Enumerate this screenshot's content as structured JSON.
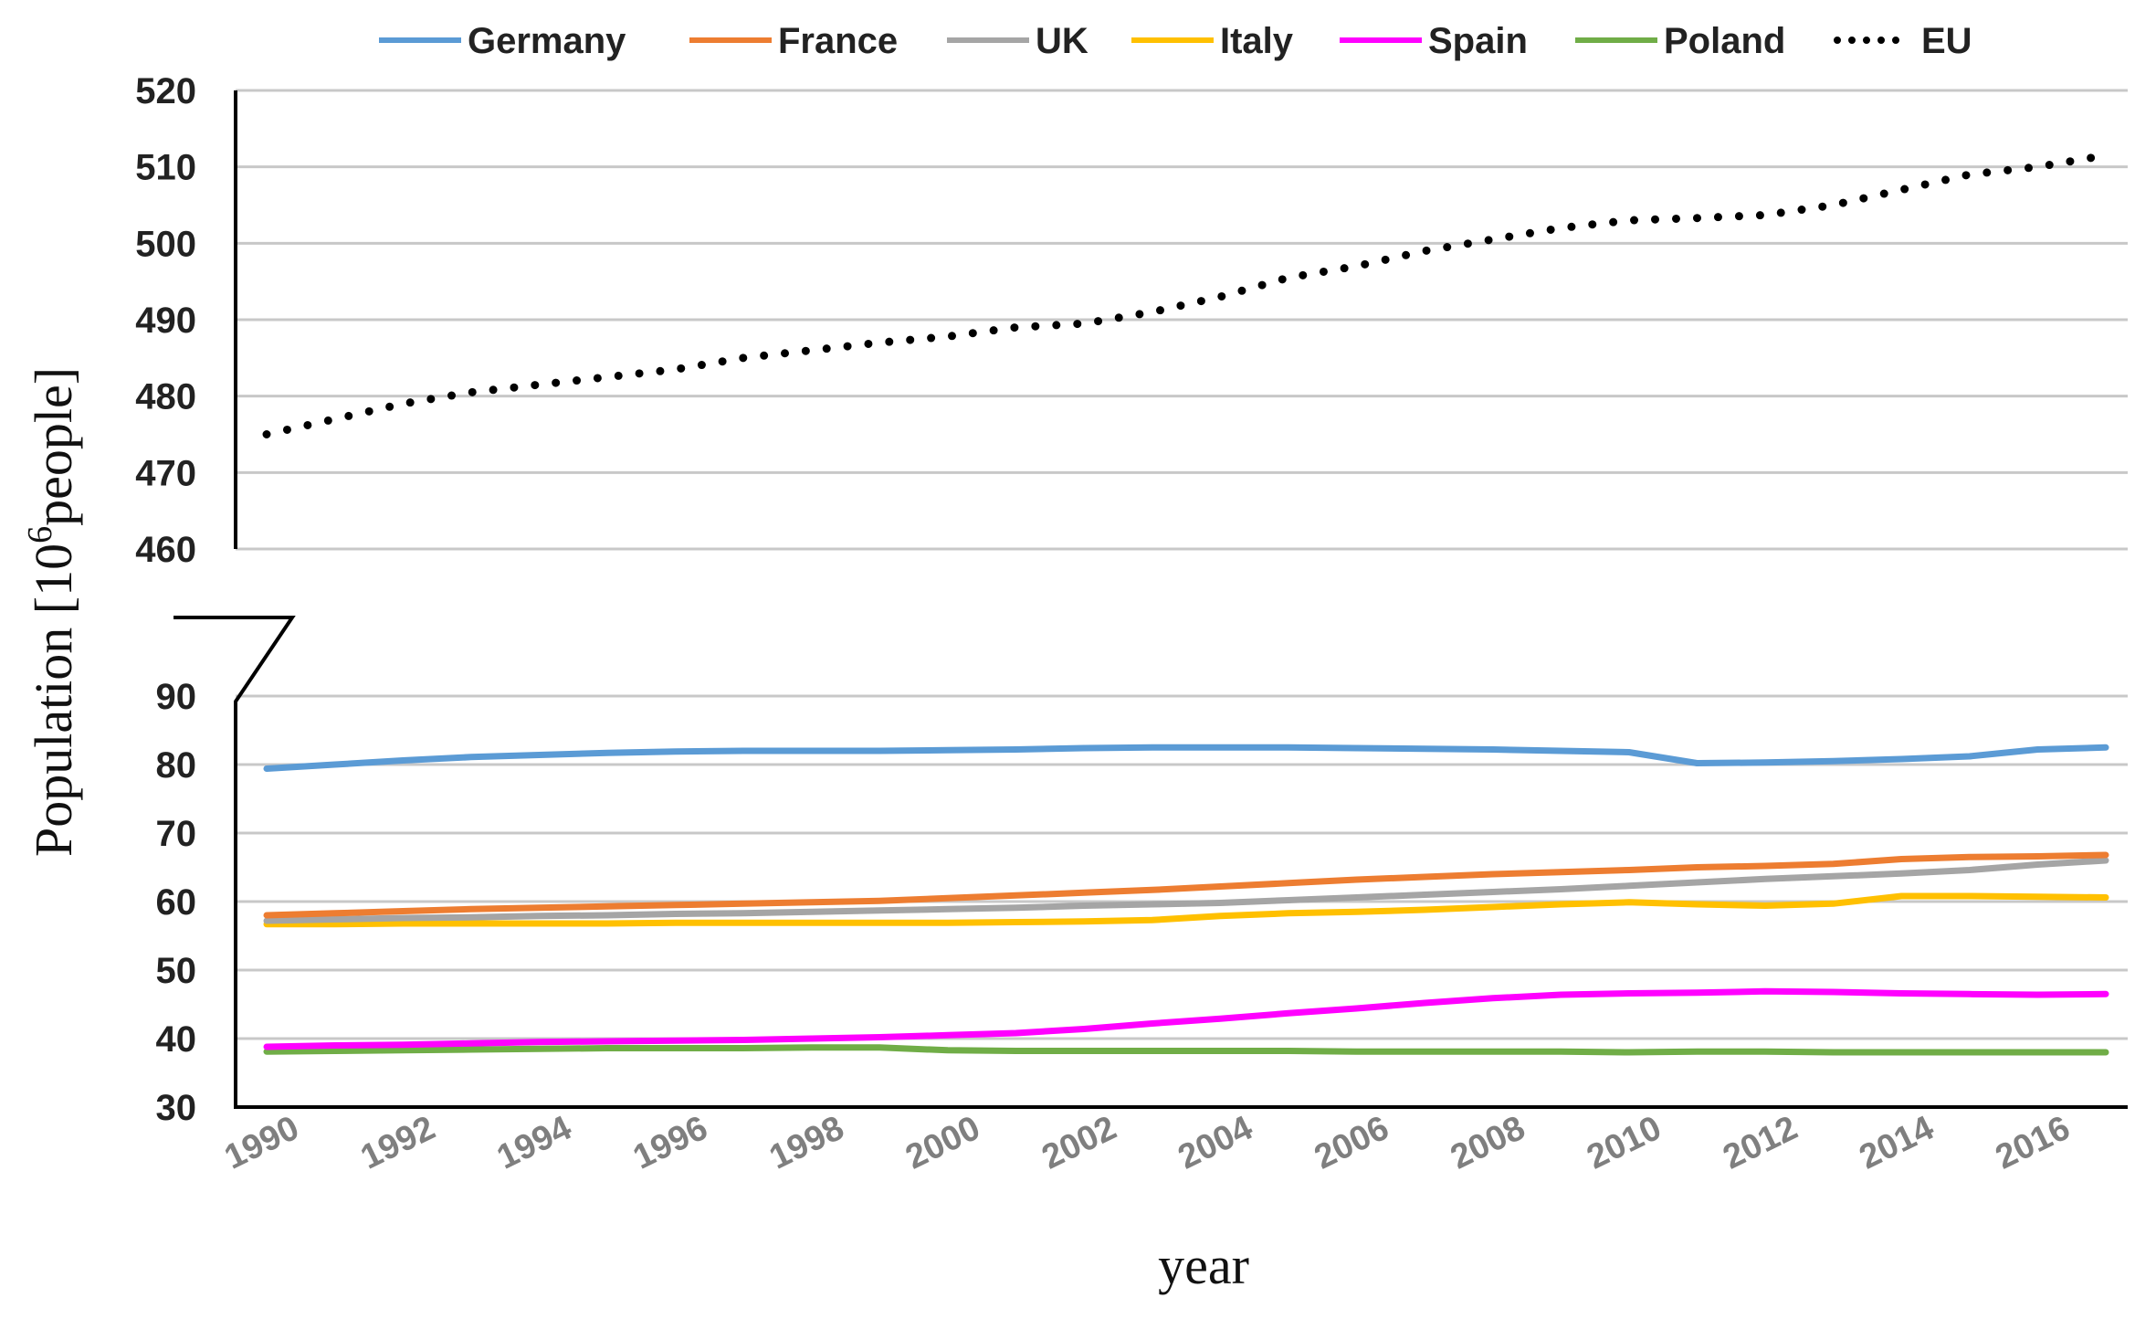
{
  "chart_data": {
    "type": "line",
    "title": "",
    "xlabel": "year",
    "ylabel": "Population [10^6 people]",
    "ylabel_parts": {
      "before": "Population [10",
      "superscript": "6",
      "after": "people]"
    },
    "x": [
      1990,
      1991,
      1992,
      1993,
      1994,
      1995,
      1996,
      1997,
      1998,
      1999,
      2000,
      2001,
      2002,
      2003,
      2004,
      2005,
      2006,
      2007,
      2008,
      2009,
      2010,
      2011,
      2012,
      2013,
      2014,
      2015,
      2016,
      2017
    ],
    "x_tick_labels": [
      "1990",
      "1992",
      "1994",
      "1996",
      "1998",
      "2000",
      "2002",
      "2004",
      "2006",
      "2008",
      "2010",
      "2012",
      "2014",
      "2016"
    ],
    "y_axis_broken": true,
    "y_upper_range": [
      460,
      520
    ],
    "y_upper_ticks": [
      "460",
      "470",
      "480",
      "490",
      "500",
      "510",
      "520"
    ],
    "y_lower_range": [
      30,
      90
    ],
    "y_lower_ticks": [
      "30",
      "40",
      "50",
      "60",
      "70",
      "80",
      "90"
    ],
    "grid": true,
    "legend_position": "top",
    "series": [
      {
        "name": "Germany",
        "color": "#5b9bd5",
        "style": "solid",
        "values": [
          79.4,
          80.0,
          80.6,
          81.1,
          81.4,
          81.7,
          81.9,
          82.0,
          82.0,
          82.0,
          82.1,
          82.2,
          82.4,
          82.5,
          82.5,
          82.5,
          82.4,
          82.3,
          82.2,
          82.0,
          81.8,
          80.2,
          80.3,
          80.5,
          80.8,
          81.2,
          82.2,
          82.5
        ]
      },
      {
        "name": "France",
        "color": "#ed7d31",
        "style": "solid",
        "values": [
          58.0,
          58.3,
          58.6,
          58.9,
          59.1,
          59.3,
          59.5,
          59.7,
          59.9,
          60.1,
          60.5,
          60.9,
          61.3,
          61.7,
          62.2,
          62.7,
          63.2,
          63.6,
          64.0,
          64.3,
          64.6,
          65.0,
          65.2,
          65.5,
          66.2,
          66.5,
          66.6,
          66.8
        ]
      },
      {
        "name": "UK",
        "color": "#a5a5a5",
        "style": "solid",
        "values": [
          57.2,
          57.4,
          57.6,
          57.7,
          57.9,
          58.0,
          58.2,
          58.3,
          58.5,
          58.7,
          58.9,
          59.1,
          59.4,
          59.6,
          59.8,
          60.2,
          60.6,
          61.0,
          61.4,
          61.8,
          62.3,
          62.8,
          63.3,
          63.7,
          64.1,
          64.6,
          65.4,
          66.0
        ]
      },
      {
        "name": "Italy",
        "color": "#ffc000",
        "style": "solid",
        "values": [
          56.7,
          56.7,
          56.8,
          56.8,
          56.8,
          56.8,
          56.9,
          56.9,
          56.9,
          56.9,
          56.9,
          57.0,
          57.1,
          57.3,
          57.9,
          58.3,
          58.5,
          58.8,
          59.2,
          59.6,
          59.9,
          59.6,
          59.4,
          59.7,
          60.8,
          60.8,
          60.7,
          60.6
        ]
      },
      {
        "name": "Spain",
        "color": "#ff00ff",
        "style": "solid",
        "values": [
          38.8,
          39.0,
          39.1,
          39.3,
          39.5,
          39.6,
          39.7,
          39.8,
          40.0,
          40.2,
          40.5,
          40.8,
          41.4,
          42.2,
          42.9,
          43.7,
          44.4,
          45.2,
          45.9,
          46.4,
          46.6,
          46.7,
          46.9,
          46.8,
          46.6,
          46.5,
          46.4,
          46.5
        ]
      },
      {
        "name": "Poland",
        "color": "#70ad47",
        "style": "solid",
        "values": [
          38.1,
          38.2,
          38.3,
          38.4,
          38.5,
          38.6,
          38.6,
          38.6,
          38.7,
          38.7,
          38.3,
          38.2,
          38.2,
          38.2,
          38.2,
          38.2,
          38.1,
          38.1,
          38.1,
          38.1,
          38.0,
          38.1,
          38.1,
          38.0,
          38.0,
          38.0,
          38.0,
          38.0
        ]
      },
      {
        "name": "EU",
        "color": "#000000",
        "style": "dotted",
        "values": [
          475.0,
          477.0,
          479.0,
          480.5,
          481.5,
          482.5,
          483.5,
          485.0,
          486.0,
          487.0,
          487.8,
          489.0,
          489.5,
          491.0,
          493.0,
          495.5,
          497.0,
          499.0,
          500.5,
          502.0,
          503.0,
          503.3,
          503.7,
          505.0,
          507.0,
          509.0,
          510.0,
          511.5
        ]
      }
    ]
  }
}
